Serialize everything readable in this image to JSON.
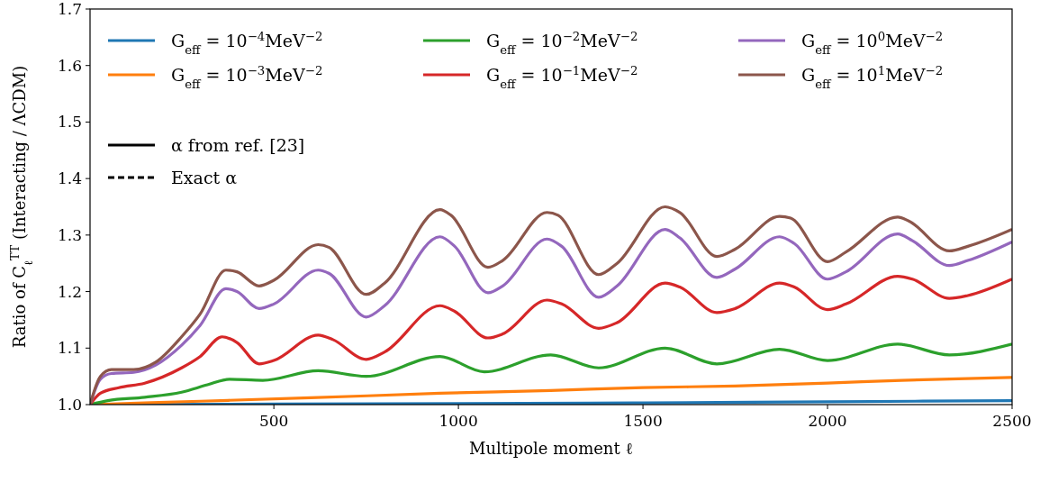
{
  "chart_data": {
    "type": "line",
    "xlabel": "Multipole moment ℓ",
    "ylabel": "Ratio of C$_{ℓ}$$^{TT}$ (Interacting / ΛCDM)",
    "xlim": [
      2,
      2500
    ],
    "xticks": [
      500,
      1000,
      1500,
      2000,
      2500
    ],
    "ylim": [
      1.0,
      1.7
    ],
    "yticks": [
      {
        "value": 1.0,
        "label": "1.0"
      },
      1.1,
      1.2,
      1.3,
      1.4,
      1.5,
      1.6,
      1.7
    ],
    "grid": false,
    "legend": "top left",
    "annotations": [
      "α from ref. [23]",
      "Exact α"
    ],
    "series": [
      {
        "name": "G$_{eff}$ = 10$^{−4}$MeV$^{−2}$",
        "color": "#1f77b4",
        "line_style": "solid",
        "x": [
          2,
          500,
          1000,
          1500,
          2000,
          2500
        ],
        "values": [
          1.0,
          1.001,
          1.002,
          1.003,
          1.005,
          1.007
        ]
      },
      {
        "name": "G$_{eff}$ = 10$^{−3}$MeV$^{−2}$",
        "color": "#ff7f0e",
        "line_style": "solid",
        "x": [
          2,
          300,
          600,
          950,
          1250,
          1500,
          1750,
          2000,
          2200,
          2500
        ],
        "values": [
          1.0,
          1.006,
          1.012,
          1.02,
          1.025,
          1.03,
          1.033,
          1.038,
          1.043,
          1.048
        ]
      },
      {
        "name": "G$_{eff}$ = 10$^{−2}$MeV$^{−2}$",
        "color": "#2ca02c",
        "line_style": "solid",
        "x": [
          2,
          50,
          150,
          250,
          320,
          380,
          470,
          620,
          750,
          950,
          1070,
          1250,
          1380,
          1560,
          1700,
          1870,
          2000,
          2190,
          2330,
          2500
        ],
        "values": [
          1.0,
          1.007,
          1.013,
          1.022,
          1.035,
          1.045,
          1.043,
          1.06,
          1.05,
          1.085,
          1.058,
          1.088,
          1.065,
          1.1,
          1.072,
          1.098,
          1.078,
          1.107,
          1.088,
          1.107
        ]
      },
      {
        "name": "G$_{eff}$ = 10$^{−1}$MeV$^{−2}$",
        "color": "#d62728",
        "line_style": "solid",
        "x": [
          2,
          30,
          80,
          150,
          250,
          300,
          360,
          400,
          460,
          500,
          620,
          660,
          750,
          800,
          950,
          990,
          1080,
          1120,
          1240,
          1280,
          1380,
          1430,
          1560,
          1600,
          1700,
          1750,
          1870,
          1910,
          2000,
          2050,
          2190,
          2230,
          2330,
          2380,
          2500
        ],
        "values": [
          1.0,
          1.02,
          1.03,
          1.038,
          1.065,
          1.085,
          1.12,
          1.11,
          1.072,
          1.078,
          1.123,
          1.115,
          1.08,
          1.093,
          1.175,
          1.165,
          1.118,
          1.125,
          1.185,
          1.178,
          1.135,
          1.145,
          1.215,
          1.208,
          1.163,
          1.17,
          1.215,
          1.208,
          1.168,
          1.178,
          1.227,
          1.222,
          1.188,
          1.193,
          1.222
        ]
      },
      {
        "name": "G$_{eff}$ = 10$^{0}$MeV$^{−2}$",
        "color": "#9467bd",
        "line_style": "solid",
        "x": [
          2,
          30,
          60,
          120,
          180,
          250,
          300,
          370,
          400,
          460,
          500,
          620,
          650,
          750,
          800,
          950,
          990,
          1080,
          1120,
          1240,
          1280,
          1380,
          1430,
          1560,
          1600,
          1700,
          1750,
          1870,
          1910,
          2000,
          2050,
          2190,
          2230,
          2330,
          2380,
          2500
        ],
        "values": [
          1.0,
          1.045,
          1.055,
          1.057,
          1.07,
          1.105,
          1.14,
          1.205,
          1.2,
          1.17,
          1.178,
          1.238,
          1.232,
          1.155,
          1.175,
          1.297,
          1.28,
          1.198,
          1.21,
          1.293,
          1.28,
          1.19,
          1.21,
          1.31,
          1.295,
          1.225,
          1.24,
          1.297,
          1.285,
          1.222,
          1.235,
          1.302,
          1.29,
          1.246,
          1.255,
          1.288
        ]
      },
      {
        "name": "G$_{eff}$ = 10$^{1}$MeV$^{−2}$",
        "color": "#8c564b",
        "line_style": "solid",
        "x": [
          2,
          30,
          60,
          120,
          180,
          250,
          300,
          370,
          400,
          460,
          500,
          620,
          650,
          750,
          800,
          950,
          980,
          1080,
          1120,
          1240,
          1270,
          1380,
          1430,
          1560,
          1600,
          1700,
          1750,
          1870,
          1900,
          2000,
          2050,
          2190,
          2220,
          2330,
          2380,
          2500
        ],
        "values": [
          1.0,
          1.05,
          1.062,
          1.062,
          1.075,
          1.12,
          1.16,
          1.238,
          1.235,
          1.21,
          1.22,
          1.283,
          1.278,
          1.195,
          1.215,
          1.345,
          1.335,
          1.243,
          1.255,
          1.34,
          1.335,
          1.23,
          1.25,
          1.35,
          1.34,
          1.262,
          1.275,
          1.333,
          1.33,
          1.253,
          1.27,
          1.332,
          1.325,
          1.272,
          1.28,
          1.31
        ]
      }
    ]
  }
}
